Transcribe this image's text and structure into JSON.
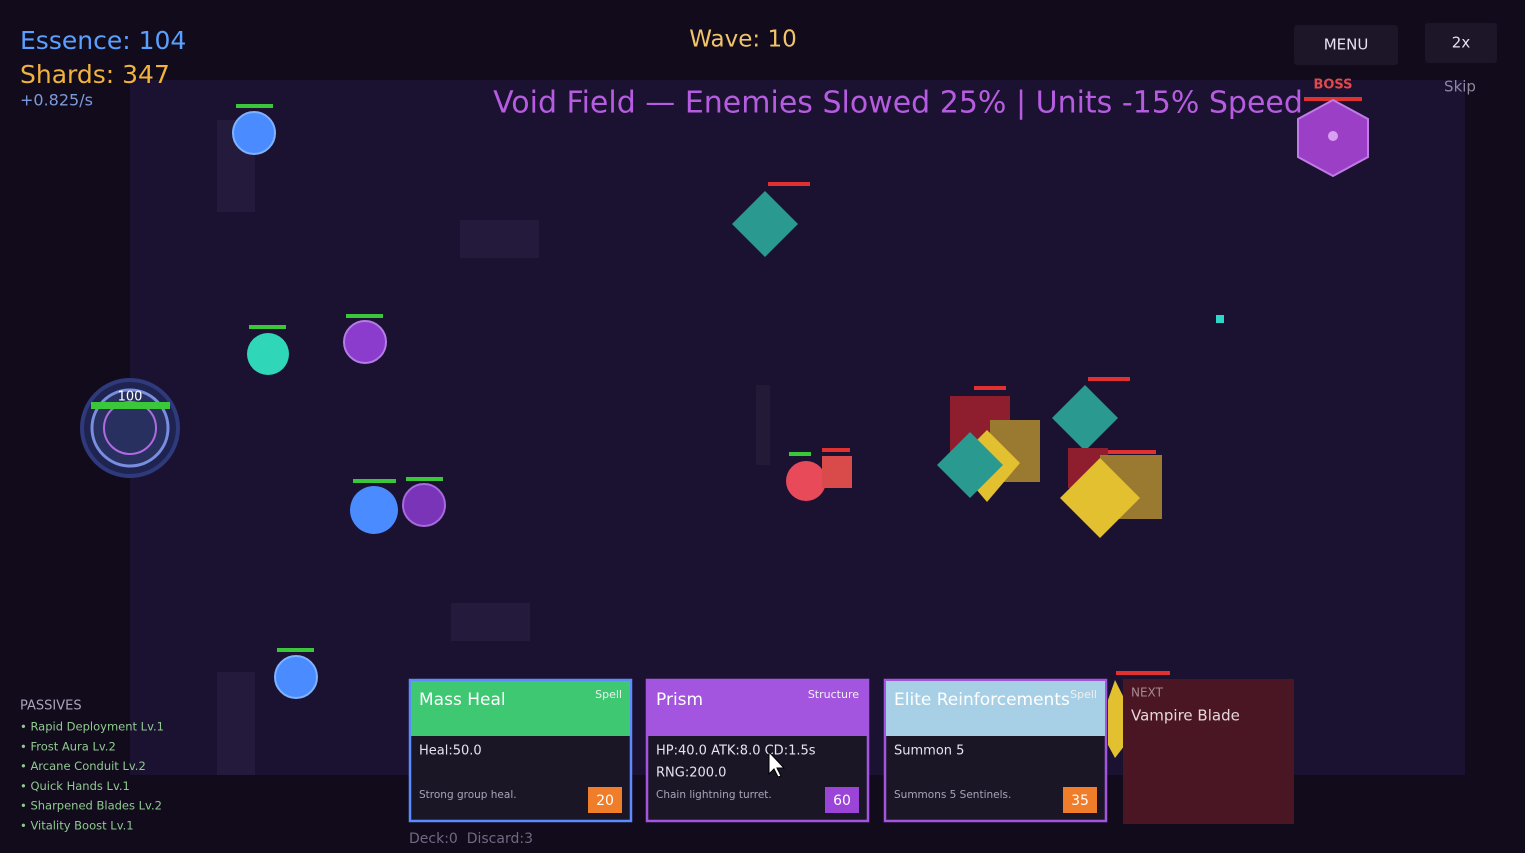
{
  "hud": {
    "essence": "Essence: 104",
    "shards": "Shards: 347",
    "rate": "+0.825/s",
    "wave": "Wave: 10",
    "menu": "MENU",
    "speed": "2x",
    "skip": "Skip"
  },
  "banner": "Void Field — Enemies Slowed 25% | Units -15% Speed",
  "boss_label": "BOSS",
  "base_hp": "100",
  "passives": {
    "title": "PASSIVES",
    "items": [
      "• Rapid Deployment Lv.1",
      "• Frost Aura Lv.2",
      "• Arcane Conduit Lv.2",
      "• Quick Hands Lv.1",
      "• Sharpened Blades Lv.2",
      "• Vitality Boost Lv.1"
    ]
  },
  "cards": [
    {
      "name": "Mass Heal",
      "kind": "Spell",
      "stats": [
        "Heal:50.0"
      ],
      "desc": "Strong group heal.",
      "cost": "20"
    },
    {
      "name": "Prism",
      "kind": "Structure",
      "stats": [
        "HP:40.0 ATK:8.0 CD:1.5s",
        "RNG:200.0"
      ],
      "desc": "Chain lightning turret.",
      "cost": "60"
    },
    {
      "name": "Elite Reinforcements",
      "kind": "Spell",
      "stats": [
        "Summon 5"
      ],
      "desc": "Summons 5 Sentinels.",
      "cost": "35"
    }
  ],
  "next": {
    "label": "NEXT",
    "name": "Vampire Blade"
  },
  "deck": "Deck:0  Discard:3"
}
